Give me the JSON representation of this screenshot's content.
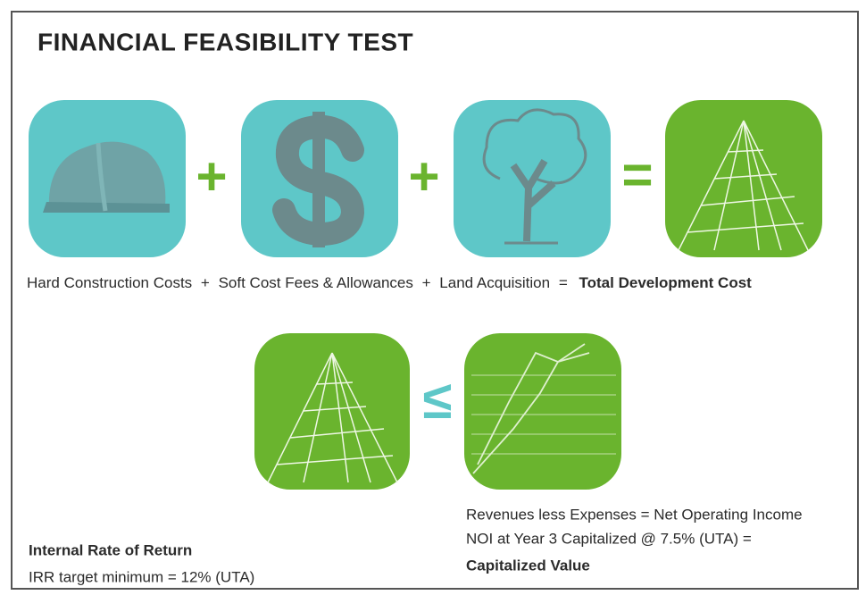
{
  "header": {
    "title": "FINANCIAL FEASIBILITY TEST"
  },
  "operators": [
    "+",
    "+",
    "=",
    "≤"
  ],
  "equation": {
    "hard": "Hard Construction Costs",
    "plus1": "+",
    "soft": "Soft Cost Fees & Allowances",
    "plus2": "+",
    "land": "Land Acquisition",
    "equals": "=",
    "total": "Total Development Cost"
  },
  "capitalized": {
    "line1": "Revenues less Expenses = Net Operating Income",
    "line2": "NOI at Year 3 Capitalized @ 7.5% (UTA) =",
    "result": "Capitalized Value"
  },
  "irr": {
    "heading": "Internal Rate of Return",
    "target": "IRR target minimum = 12% (UTA)"
  }
}
